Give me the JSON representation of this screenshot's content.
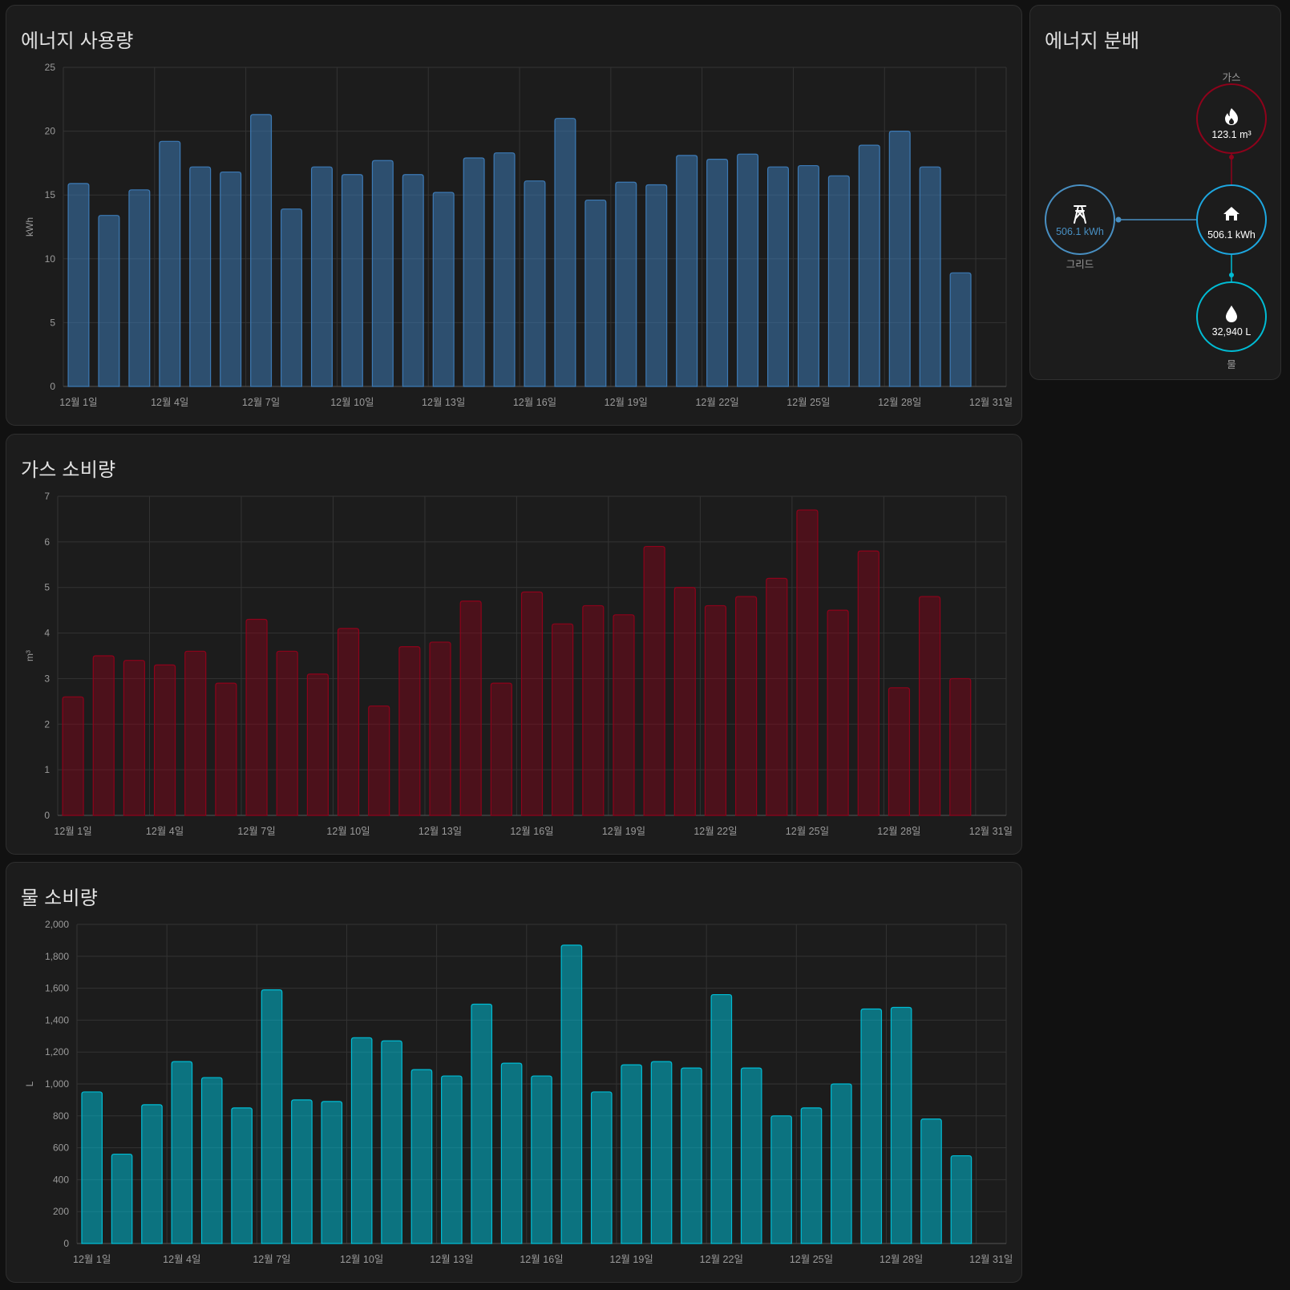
{
  "energy": {
    "title": "에너지 사용량",
    "chart_data": {
      "type": "bar",
      "title": "에너지 사용량",
      "ylabel": "kWh",
      "ylim": [
        0,
        25
      ],
      "yticks": [
        0,
        5,
        10,
        15,
        20,
        25
      ],
      "categories": [
        "12월 1일",
        "12월 2일",
        "12월 3일",
        "12월 4일",
        "12월 5일",
        "12월 6일",
        "12월 7일",
        "12월 8일",
        "12월 9일",
        "12월 10일",
        "12월 11일",
        "12월 12일",
        "12월 13일",
        "12월 14일",
        "12월 15일",
        "12월 16일",
        "12월 17일",
        "12월 18일",
        "12월 19일",
        "12월 20일",
        "12월 21일",
        "12월 22일",
        "12월 23일",
        "12월 24일",
        "12월 25일",
        "12월 26일",
        "12월 27일",
        "12월 28일",
        "12월 29일",
        "12월 30일",
        "12월 31일"
      ],
      "xtick_labels": [
        "12월 1일",
        "12월 4일",
        "12월 7일",
        "12월 10일",
        "12월 13일",
        "12월 16일",
        "12월 19일",
        "12월 22일",
        "12월 25일",
        "12월 28일",
        "12월 31일"
      ],
      "values": [
        15.9,
        13.4,
        15.4,
        19.2,
        17.2,
        16.8,
        21.3,
        13.9,
        17.2,
        16.6,
        17.7,
        16.6,
        15.2,
        17.9,
        18.3,
        16.1,
        21.0,
        14.6,
        16.0,
        15.8,
        18.1,
        17.8,
        18.2,
        17.2,
        17.3,
        16.5,
        18.9,
        20.0,
        17.2,
        8.9,
        null
      ],
      "color": "#3d7ab5"
    }
  },
  "gas": {
    "title": "가스 소비량",
    "chart_data": {
      "type": "bar",
      "title": "가스 소비량",
      "ylabel": "m³",
      "ylim": [
        0,
        7
      ],
      "yticks": [
        0,
        1,
        2,
        3,
        4,
        5,
        6,
        7
      ],
      "categories": [
        "12월 1일",
        "12월 2일",
        "12월 3일",
        "12월 4일",
        "12월 5일",
        "12월 6일",
        "12월 7일",
        "12월 8일",
        "12월 9일",
        "12월 10일",
        "12월 11일",
        "12월 12일",
        "12월 13일",
        "12월 14일",
        "12월 15일",
        "12월 16일",
        "12월 17일",
        "12월 18일",
        "12월 19일",
        "12월 20일",
        "12월 21일",
        "12월 22일",
        "12월 23일",
        "12월 24일",
        "12월 25일",
        "12월 26일",
        "12월 27일",
        "12월 28일",
        "12월 29일",
        "12월 30일",
        "12월 31일"
      ],
      "xtick_labels": [
        "12월 1일",
        "12월 4일",
        "12월 7일",
        "12월 10일",
        "12월 13일",
        "12월 16일",
        "12월 19일",
        "12월 22일",
        "12월 25일",
        "12월 28일",
        "12월 31일"
      ],
      "values": [
        2.6,
        3.5,
        3.4,
        3.3,
        3.6,
        2.9,
        4.3,
        3.6,
        3.1,
        4.1,
        2.4,
        3.7,
        3.8,
        4.7,
        2.9,
        4.9,
        4.2,
        4.6,
        4.4,
        5.9,
        5.0,
        4.6,
        4.8,
        5.2,
        6.7,
        4.5,
        5.8,
        2.8,
        4.8,
        3.0,
        null
      ],
      "color": "#8e021b"
    }
  },
  "water": {
    "title": "물 소비량",
    "chart_data": {
      "type": "bar",
      "title": "물 소비량",
      "ylabel": "L",
      "ylim": [
        0,
        2000
      ],
      "yticks": [
        0,
        200,
        400,
        600,
        800,
        1000,
        1200,
        1400,
        1600,
        1800,
        2000
      ],
      "ytick_labels": [
        "0",
        "200",
        "400",
        "600",
        "800",
        "1,000",
        "1,200",
        "1,400",
        "1,600",
        "1,800",
        "2,000"
      ],
      "categories": [
        "12월 1일",
        "12월 2일",
        "12월 3일",
        "12월 4일",
        "12월 5일",
        "12월 6일",
        "12월 7일",
        "12월 8일",
        "12월 9일",
        "12월 10일",
        "12월 11일",
        "12월 12일",
        "12월 13일",
        "12월 14일",
        "12월 15일",
        "12월 16일",
        "12월 17일",
        "12월 18일",
        "12월 19일",
        "12월 20일",
        "12월 21일",
        "12월 22일",
        "12월 23일",
        "12월 24일",
        "12월 25일",
        "12월 26일",
        "12월 27일",
        "12월 28일",
        "12월 29일",
        "12월 30일",
        "12월 31일"
      ],
      "xtick_labels": [
        "12월 1일",
        "12월 4일",
        "12월 7일",
        "12월 10일",
        "12월 13일",
        "12월 16일",
        "12월 19일",
        "12월 22일",
        "12월 25일",
        "12월 28일",
        "12월 31일"
      ],
      "values": [
        950,
        560,
        870,
        1140,
        1040,
        850,
        1590,
        900,
        890,
        1290,
        1270,
        1090,
        1050,
        1500,
        1130,
        1050,
        1870,
        950,
        1120,
        1140,
        1100,
        1560,
        1100,
        800,
        850,
        1000,
        1470,
        1480,
        780,
        550,
        null
      ],
      "color": "#00bcd4"
    }
  },
  "distribution": {
    "title": "에너지 분배",
    "grid": {
      "label": "그리드",
      "value": "506.1 kWh"
    },
    "gas": {
      "label": "가스",
      "value": "123.1 m³"
    },
    "home": {
      "value": "506.1 kWh"
    },
    "water": {
      "label": "물",
      "value": "32,940 L"
    },
    "colors": {
      "grid": "#488fc2",
      "gas": "#8e021b",
      "home": "#1da7e0",
      "water": "#00bcd4"
    }
  }
}
